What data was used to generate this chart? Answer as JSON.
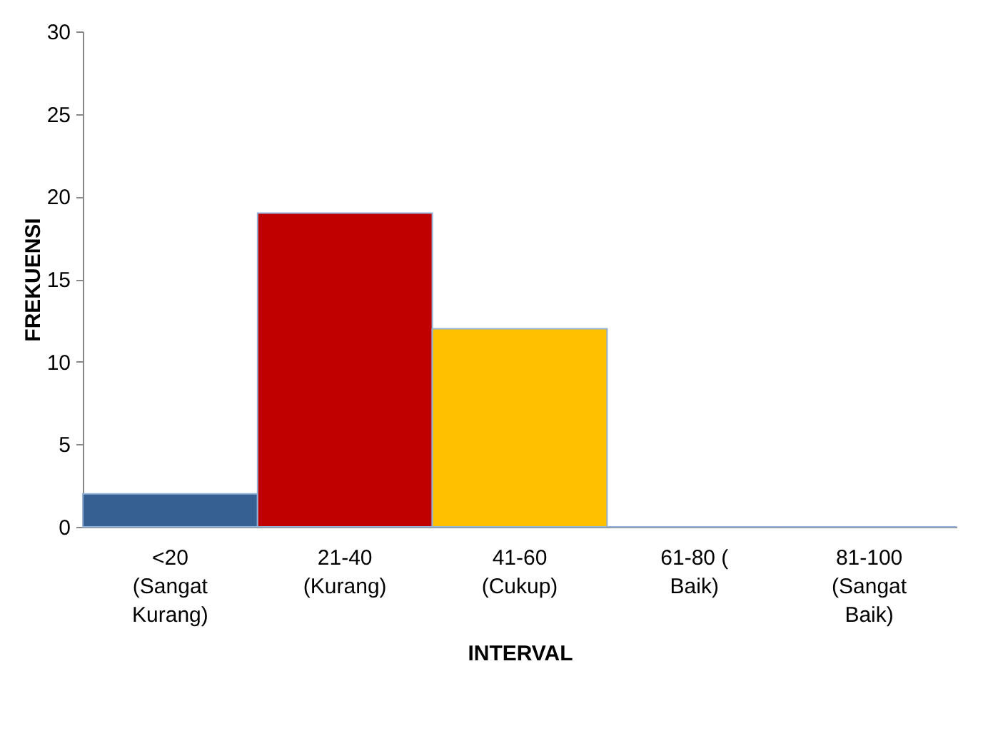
{
  "chart_data": {
    "type": "bar",
    "categories": [
      "<20\n(Sangat\nKurang)",
      "21-40\n(Kurang)",
      "41-60\n(Cukup)",
      "61-80 (\nBaik)",
      "81-100\n(Sangat\nBaik)"
    ],
    "values": [
      2,
      19,
      12,
      0,
      0
    ],
    "colors": [
      "#376092",
      "#c00000",
      "#ffc000",
      "#95b3d7",
      "#95b3d7"
    ],
    "xlabel": "INTERVAL",
    "ylabel": "FREKUENSI",
    "ylim": [
      0,
      30
    ],
    "yticks": [
      0,
      5,
      10,
      15,
      20,
      25,
      30
    ],
    "grid": false
  }
}
